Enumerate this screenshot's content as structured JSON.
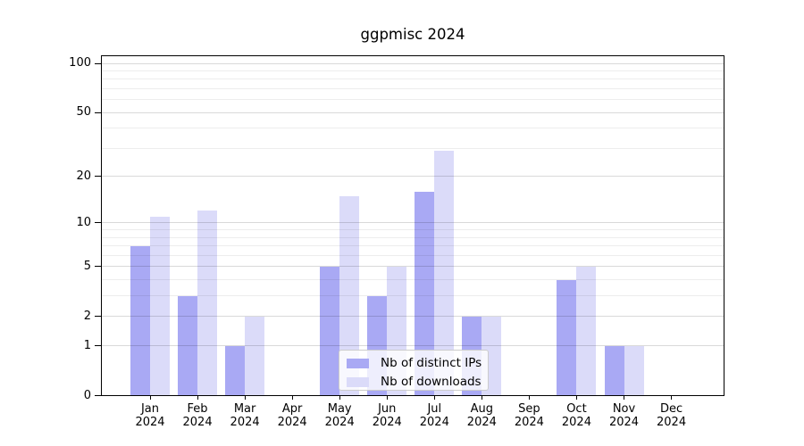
{
  "chart_data": {
    "type": "bar",
    "title": "ggpmisc 2024",
    "categories": [
      "Jan",
      "Feb",
      "Mar",
      "Apr",
      "May",
      "Jun",
      "Jul",
      "Aug",
      "Sep",
      "Oct",
      "Nov",
      "Dec"
    ],
    "category_year": "2024",
    "series": [
      {
        "name": "Nb of distinct IPs",
        "color": "#a9a9f4",
        "values": [
          7,
          3,
          1,
          0,
          5,
          3,
          16,
          2,
          0,
          4,
          1,
          0
        ]
      },
      {
        "name": "Nb of downloads",
        "color": "#dbdbf9",
        "values": [
          11,
          12,
          2,
          0,
          15,
          5,
          29,
          2,
          0,
          5,
          1,
          0
        ]
      }
    ],
    "y_axis": {
      "scale": "log1p",
      "tick_labels": [
        100,
        50,
        20,
        10,
        5,
        2,
        1,
        0
      ],
      "minor_gridlines": [
        3,
        4,
        6,
        7,
        8,
        9,
        30,
        40,
        60,
        70,
        80,
        90
      ],
      "major_gridlines": [
        1,
        2,
        5,
        10,
        20,
        50,
        100
      ],
      "ylim": [
        0,
        100
      ]
    },
    "legend": {
      "position": "lower-center",
      "entries": [
        "Nb of distinct IPs",
        "Nb of downloads"
      ]
    },
    "grid": true
  },
  "colors": {
    "background": "#ffffff",
    "frame": "#000000",
    "grid_major": "rgba(0,0,0,0.15)",
    "grid_minor": "rgba(0,0,0,0.07)",
    "legend_border": "#cccccc"
  }
}
